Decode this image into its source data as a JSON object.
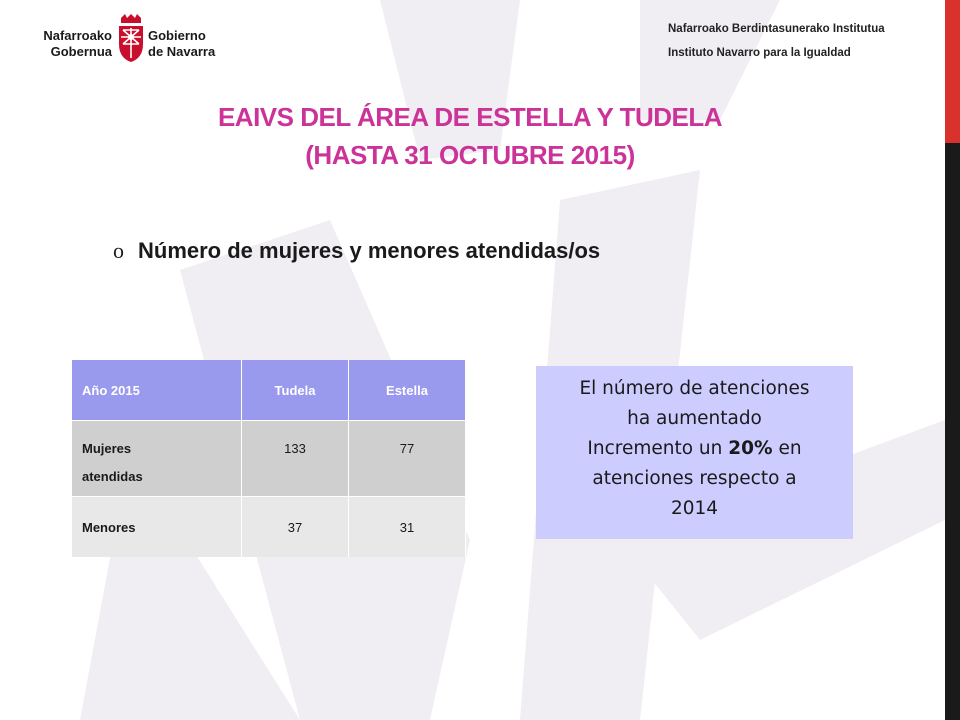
{
  "header": {
    "logo": {
      "left_line1": "Nafarroako",
      "left_line2": "Gobernua",
      "right_line1": "Gobierno",
      "right_line2": "de Navarra",
      "colors": {
        "shield": "#c8102e"
      }
    },
    "institute_line1": "Nafarroako Berdintasunerako Institutua",
    "institute_line2": "Instituto Navarro para la Igualdad"
  },
  "title": {
    "line1": "EAIVS DEL ÁREA DE ESTELLA Y TUDELA",
    "line2": "(HASTA 31 OCTUBRE 2015)",
    "color": "#cc3399"
  },
  "bullet": {
    "marker": "o",
    "text": "Número de mujeres y menores atendidas/os"
  },
  "table": {
    "headers": [
      "Año 2015",
      "Tudela",
      "Estella"
    ],
    "rows": [
      {
        "label_line1": "Mujeres",
        "label_line2": "atendidas",
        "values": [
          "133",
          "77"
        ]
      },
      {
        "label": "Menores",
        "values": [
          "37",
          "31"
        ]
      }
    ],
    "colors": {
      "header": "#9999ee",
      "row1": "#cfcfcf",
      "row2": "#e8e8e8"
    }
  },
  "note": {
    "line1": "El número de atenciones",
    "line2": "ha aumentado",
    "line3_pre": "Incremento un ",
    "line3_bold": "20%",
    "line3_post": " en",
    "line4": "atenciones respecto a",
    "line5": "2014",
    "color": "#ccccff"
  },
  "decor": {
    "accent_bar": "#d9312b",
    "side_bar": "#1a1a1a",
    "watermark": "#f1eef3"
  }
}
